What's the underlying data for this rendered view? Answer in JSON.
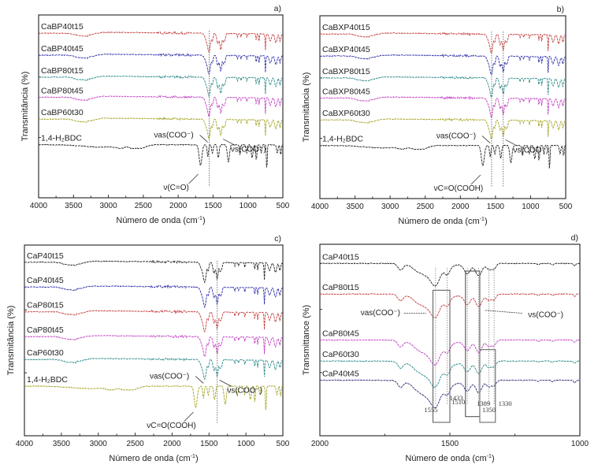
{
  "chart_data": [
    {
      "panel": "a)",
      "type": "line",
      "xlabel": "Número de onda (cm⁻¹)",
      "ylabel": "Transmitância (%)",
      "xlim": [
        4000,
        500
      ],
      "xticks": [
        4000,
        3500,
        3000,
        2500,
        2000,
        1500,
        1000,
        500
      ],
      "yticks_labels": false,
      "grid": false,
      "series": [
        {
          "name": "CaBP40t15",
          "color": "#c43c3c",
          "offset": 0.9,
          "kind": "salt"
        },
        {
          "name": "CaBP40t45",
          "color": "#2b2ba8",
          "offset": 0.78,
          "kind": "salt"
        },
        {
          "name": "CaBP80t15",
          "color": "#2a8a8a",
          "offset": 0.66,
          "kind": "salt"
        },
        {
          "name": "CaBP80t45",
          "color": "#c23cc2",
          "offset": 0.55,
          "kind": "salt"
        },
        {
          "name": "CaBP60t30",
          "color": "#a3a323",
          "offset": 0.43,
          "kind": "salt"
        },
        {
          "name": "1,4-H₂BDC",
          "color": "#222222",
          "offset": 0.29,
          "kind": "acid"
        }
      ],
      "vlines": [
        1555
      ],
      "annotations": [
        {
          "text": "νas(COO⁻)",
          "x": 1555
        },
        {
          "text": "νs(COO⁻)",
          "x": 1389
        },
        {
          "text": "ν(C=O)",
          "x": 1690
        }
      ]
    },
    {
      "panel": "b)",
      "type": "line",
      "xlabel": "Número de onda (cm⁻¹)",
      "ylabel": "Transmitância (%)",
      "xlim": [
        4000,
        500
      ],
      "xticks": [
        4000,
        3500,
        3000,
        2500,
        2000,
        1500,
        1000,
        500
      ],
      "grid": false,
      "series": [
        {
          "name": "CaBXP40t15",
          "color": "#c43c3c",
          "offset": 0.9,
          "kind": "salt"
        },
        {
          "name": "CaBXP40t45",
          "color": "#2b2ba8",
          "offset": 0.78,
          "kind": "salt"
        },
        {
          "name": "CaBXP80t15",
          "color": "#2a8a8a",
          "offset": 0.66,
          "kind": "salt"
        },
        {
          "name": "CaBXP80t45",
          "color": "#c23cc2",
          "offset": 0.55,
          "kind": "salt"
        },
        {
          "name": "CaBXP60t30",
          "color": "#a3a323",
          "offset": 0.43,
          "kind": "salt"
        },
        {
          "name": "1,4-H₂BDC",
          "color": "#222222",
          "offset": 0.29,
          "kind": "acid"
        }
      ],
      "vlines": [
        1555,
        1389
      ],
      "annotations": [
        {
          "text": "νas(COO⁻)",
          "x": 1555
        },
        {
          "text": "νs(COO⁻)",
          "x": 1389
        },
        {
          "text": "νC=O(COOH)",
          "x": 1690
        }
      ]
    },
    {
      "panel": "c)",
      "type": "line",
      "xlabel": "Número de onda (cm⁻¹)",
      "ylabel": "Transmitância (%)",
      "xlim": [
        4000,
        500
      ],
      "xticks": [
        4000,
        3500,
        3000,
        2500,
        2000,
        1500,
        1000,
        500
      ],
      "grid": false,
      "series": [
        {
          "name": "CaP40t15",
          "color": "#222222",
          "offset": 0.91,
          "kind": "salt"
        },
        {
          "name": "CaP40t45",
          "color": "#2b2ba8",
          "offset": 0.78,
          "kind": "salt"
        },
        {
          "name": "CaP80t15",
          "color": "#c43c3c",
          "offset": 0.65,
          "kind": "salt"
        },
        {
          "name": "CaP80t45",
          "color": "#c23cc2",
          "offset": 0.52,
          "kind": "salt"
        },
        {
          "name": "CaP60t30",
          "color": "#2a8a8a",
          "offset": 0.4,
          "kind": "salt"
        },
        {
          "name": "1,4-H₂BDC",
          "color": "#a3a323",
          "offset": 0.26,
          "kind": "acid"
        }
      ],
      "vlines": [
        1389
      ],
      "annotations": [
        {
          "text": "νas(COO⁻)",
          "x": 1555
        },
        {
          "text": "νs(COO⁻)",
          "x": 1389
        },
        {
          "text": "νC=O(COOH)",
          "x": 1690
        }
      ]
    },
    {
      "panel": "d)",
      "type": "line",
      "xlabel": "Número de onda (cm⁻¹)",
      "ylabel": "Transmittance (%)",
      "xlim": [
        2000,
        1000
      ],
      "xticks": [
        2000,
        1500,
        1000
      ],
      "grid": false,
      "series": [
        {
          "name": "CaP40t15",
          "color": "#222222",
          "offset": 0.9,
          "kind": "zoom"
        },
        {
          "name": "CaP80t15",
          "color": "#c43c3c",
          "offset": 0.74,
          "kind": "zoom"
        },
        {
          "name": "CaP80t45",
          "color": "#c23cc2",
          "offset": 0.5,
          "kind": "zoom"
        },
        {
          "name": "CaP60t30",
          "color": "#2a8a8a",
          "offset": 0.39,
          "kind": "zoom"
        },
        {
          "name": "CaP40t45",
          "color": "#2b2b78",
          "offset": 0.29,
          "kind": "zoom"
        }
      ],
      "peak_labels": [
        1555,
        1510,
        1433,
        1389,
        1350,
        1330
      ],
      "annotations": [
        {
          "text": "νas(COO⁻)",
          "x": 1555
        },
        {
          "text": "νs(COO⁻)",
          "x": 1389
        }
      ]
    }
  ]
}
